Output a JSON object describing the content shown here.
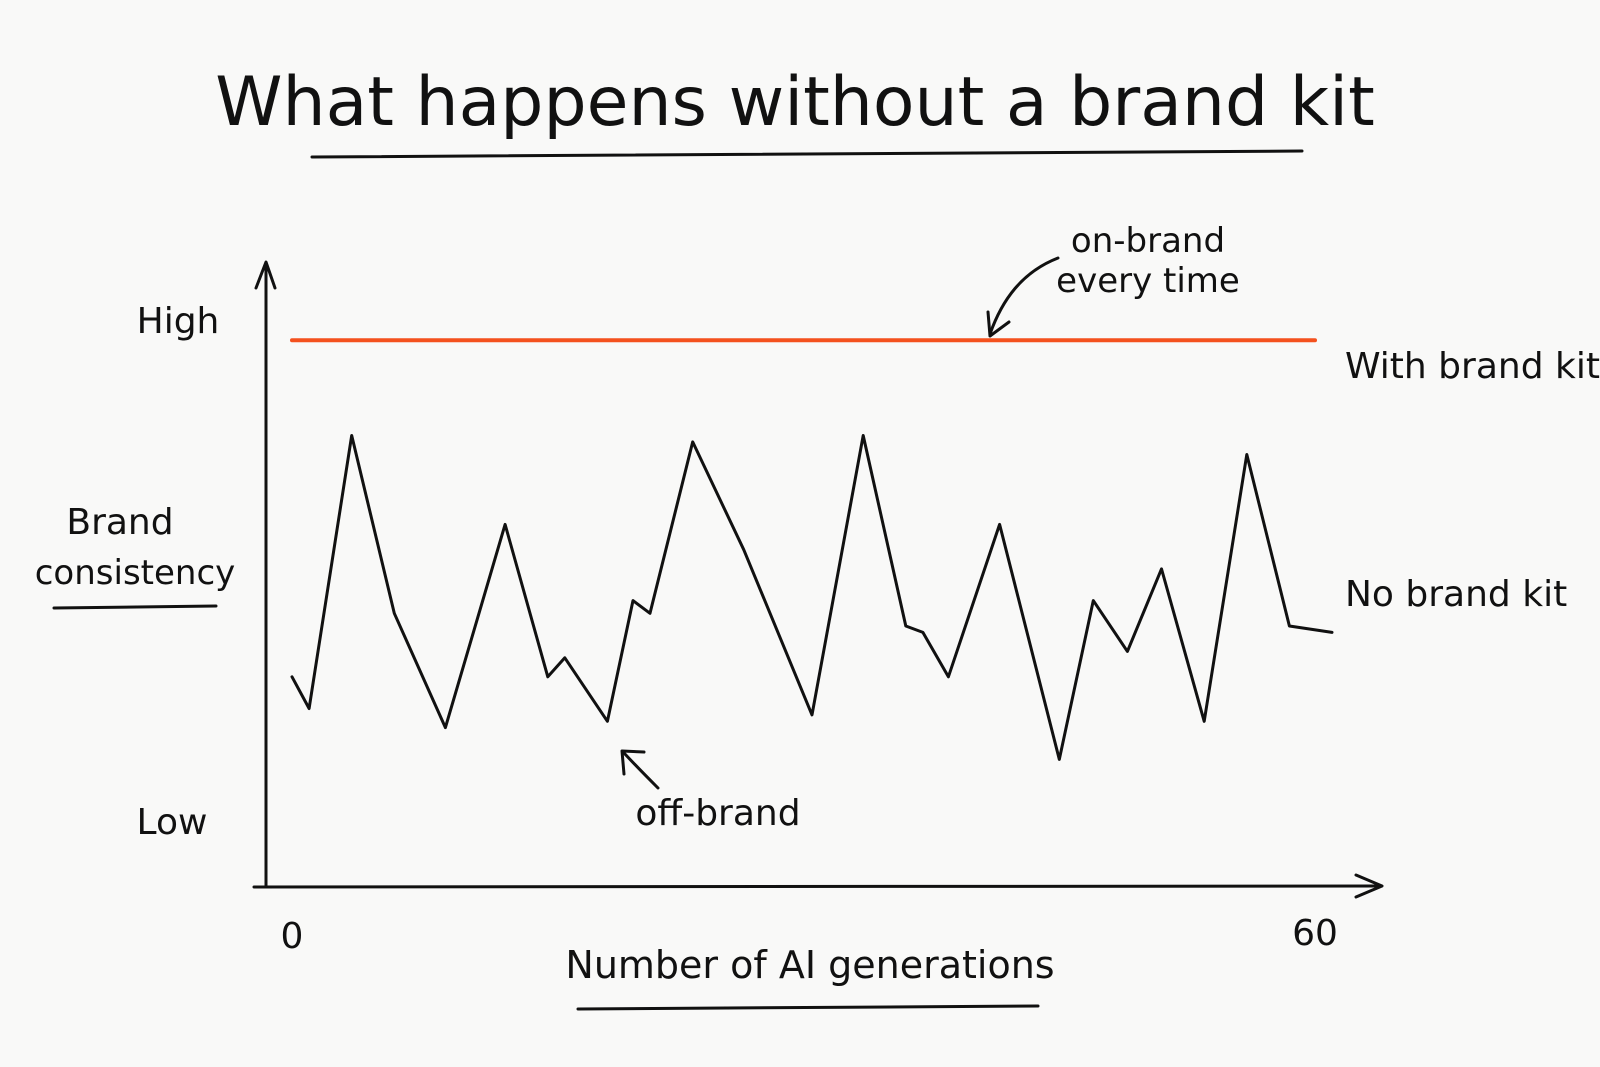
{
  "chart_data": {
    "type": "line",
    "title": "What happens without a brand kit",
    "xlabel": "Number of AI generations",
    "ylabel_lines": [
      "Brand",
      "consistency"
    ],
    "x_ticks": [
      "0",
      "60"
    ],
    "xlim": [
      0,
      60
    ],
    "y_ticks": {
      "high": "High",
      "low": "Low"
    },
    "ylim": [
      0,
      1
    ],
    "grid": false,
    "series": [
      {
        "name": "With brand kit",
        "color": "#f4511e",
        "x": [
          0,
          60
        ],
        "values": [
          0.85,
          0.85
        ]
      },
      {
        "name": "No brand kit",
        "color": "#111111",
        "x": [
          0,
          1,
          3.5,
          6,
          9,
          12.5,
          15,
          16,
          18.5,
          20,
          21,
          23.5,
          26.5,
          30.5,
          33.5,
          36,
          37,
          38.5,
          41.5,
          45,
          47,
          49,
          51,
          53.5,
          56,
          58.5,
          61
        ],
        "values": [
          0.32,
          0.27,
          0.7,
          0.42,
          0.24,
          0.56,
          0.32,
          0.35,
          0.25,
          0.44,
          0.42,
          0.69,
          0.52,
          0.26,
          0.7,
          0.4,
          0.39,
          0.32,
          0.56,
          0.19,
          0.44,
          0.36,
          0.49,
          0.25,
          0.67,
          0.4,
          0.39
        ]
      }
    ],
    "annotations": [
      {
        "text_lines": [
          "on-brand",
          "every time"
        ],
        "points_to": "With brand kit"
      },
      {
        "text": "off-brand",
        "points_to": "No brand kit"
      }
    ]
  }
}
